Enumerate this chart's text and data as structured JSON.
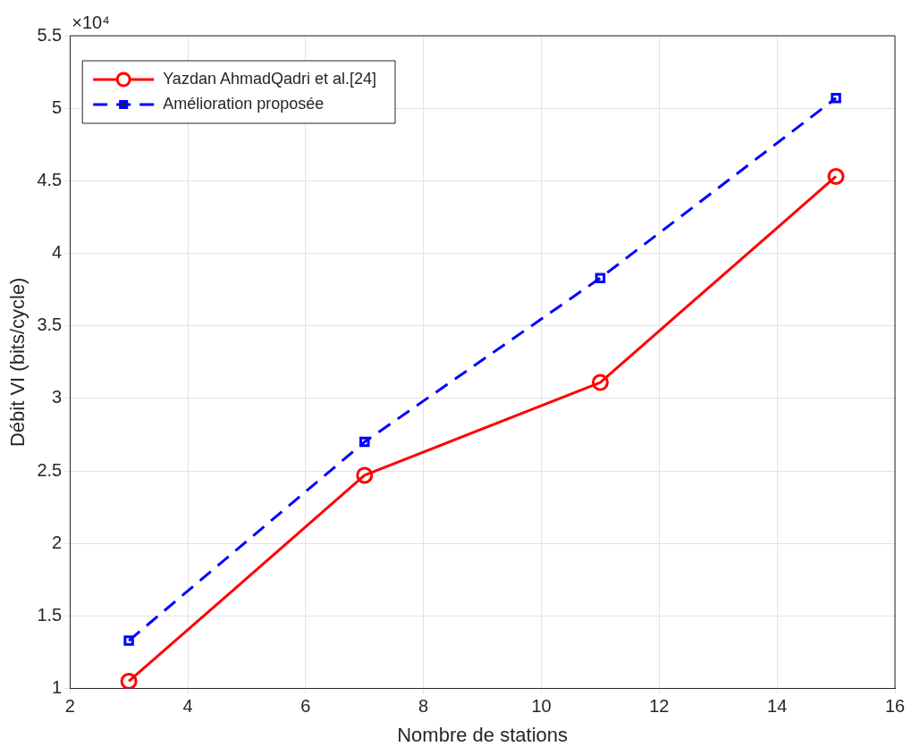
{
  "chart_data": {
    "type": "line",
    "xlabel": "Nombre de stations",
    "ylabel": "Débit VI (bits/cycle)",
    "annotations": [
      "×10⁴"
    ],
    "x": [
      3,
      7,
      11,
      15
    ],
    "series": [
      {
        "name": "Yazdan AhmadQadri et al.[24]",
        "color": "#ff0000",
        "values": [
          1.05,
          2.47,
          3.11,
          4.53
        ],
        "marker": "circle",
        "line_style": "solid"
      },
      {
        "name": "Amélioration proposée",
        "color": "#0000ff",
        "values": [
          1.33,
          2.7,
          3.83,
          5.07
        ],
        "marker": "square",
        "line_style": "dashed"
      }
    ],
    "xlim": [
      2,
      16
    ],
    "xticks": [
      2,
      4,
      6,
      8,
      10,
      12,
      14,
      16
    ],
    "ylim": [
      1,
      5.5
    ],
    "yticks": [
      1,
      1.5,
      2,
      2.5,
      3,
      3.5,
      4,
      4.5,
      5,
      5.5
    ],
    "grid": true,
    "legend": "top left"
  }
}
